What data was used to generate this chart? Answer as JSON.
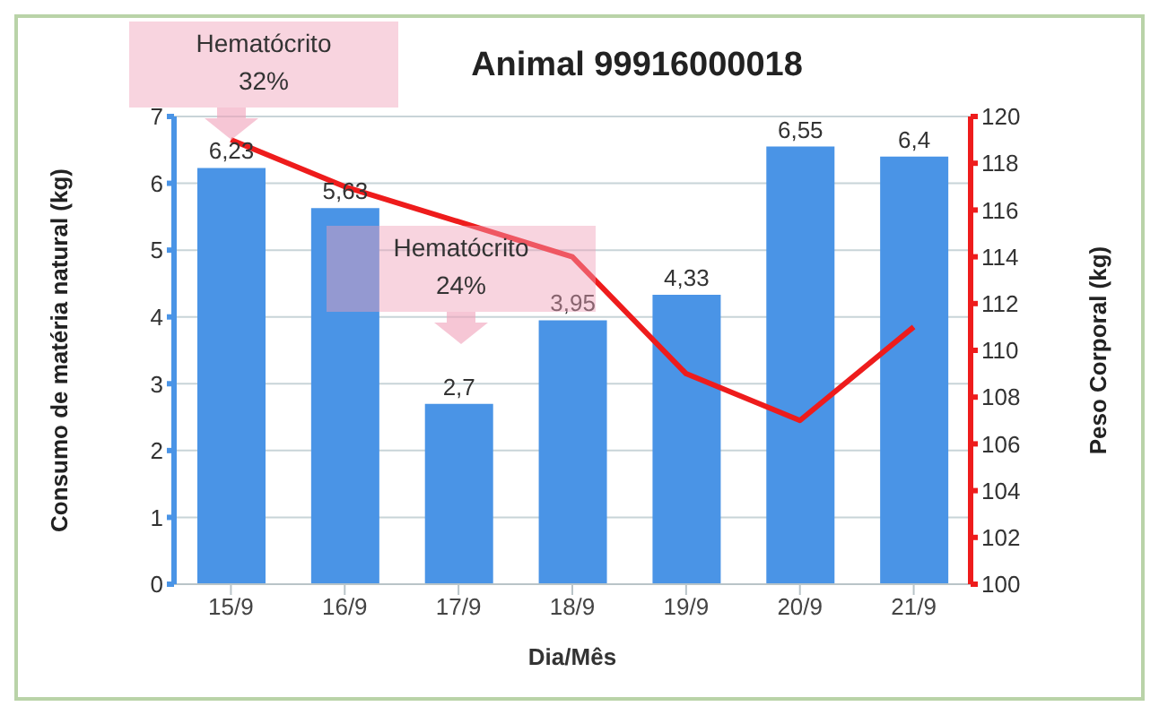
{
  "chart_data": {
    "type": "bar",
    "title": "Animal 99916000018",
    "xlabel": "Dia/Mês",
    "ylabel": "Consumo de matéria natural (kg)",
    "y2label": "Peso Corporal (kg)",
    "categories": [
      "15/9",
      "16/9",
      "17/9",
      "18/9",
      "19/9",
      "20/9",
      "21/9"
    ],
    "series": [
      {
        "color": "#4a94e6",
        "values": [
          6.23,
          5.63,
          2.7,
          3.95,
          4.33,
          6.55,
          6.4
        ],
        "value_labels": [
          "6,23",
          "5,63",
          "2,7",
          "3,95",
          "4,33",
          "6,55",
          "6,4"
        ]
      },
      {
        "type": "line",
        "axis": "y2",
        "color": "#ee1c1c",
        "values": [
          119,
          117,
          null,
          114,
          109,
          107,
          111
        ]
      }
    ],
    "ylim": [
      0,
      7
    ],
    "yticks": [
      0,
      1,
      2,
      3,
      4,
      5,
      6,
      7
    ],
    "y2lim": [
      100,
      120
    ],
    "y2ticks": [
      100,
      102,
      104,
      106,
      108,
      110,
      112,
      114,
      116,
      118,
      120
    ],
    "grid": "y",
    "legend": false,
    "marker": "none",
    "annotations": [
      "Hematócrito 32%",
      "Hematócrito 24%"
    ]
  }
}
